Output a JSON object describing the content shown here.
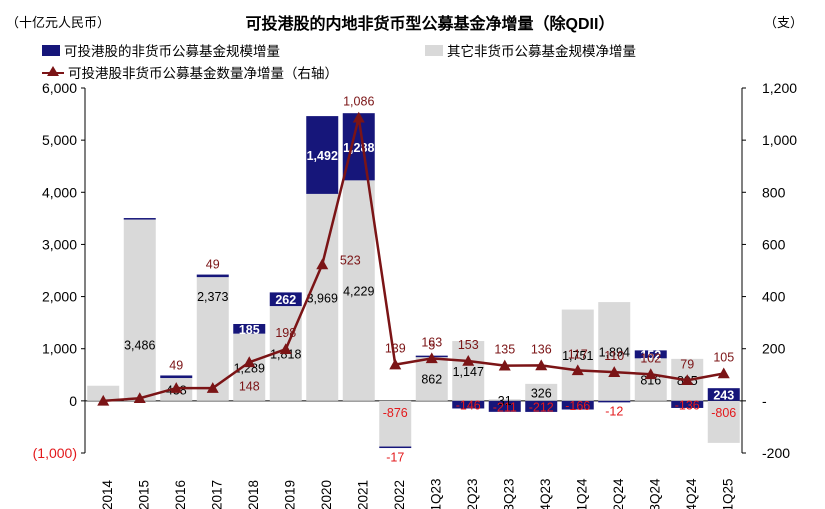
{
  "header": {
    "title": "可投港股的内地非货币型公募基金净增量（除QDII）",
    "left_unit": "（十亿元人民币）",
    "right_unit": "（支）"
  },
  "legend": {
    "series_a": "可投港股的非货币公募基金规模增量",
    "series_b": "其它非货币公募基金规模净增量",
    "series_c": "可投港股非货币公募基金数量净增量（右轴）"
  },
  "colors": {
    "series_a": "#16167a",
    "series_b": "#d9d9d9",
    "series_c": "#7b1416",
    "neg_label": "#e3191c"
  },
  "chart_data": {
    "type": "bar",
    "stacked": true,
    "categories": [
      "2014",
      "2015",
      "2016",
      "2017",
      "2018",
      "2019",
      "2020",
      "2021",
      "2022",
      "1Q23",
      "2Q23",
      "3Q23",
      "4Q23",
      "1Q24",
      "2Q24",
      "3Q24",
      "4Q24",
      "1Q25"
    ],
    "y_left": {
      "range": [
        -1000,
        6000
      ],
      "ticks": [
        -1000,
        0,
        1000,
        2000,
        3000,
        4000,
        5000,
        6000
      ],
      "tick_labels": [
        "(1,000)",
        "0",
        "1,000",
        "2,000",
        "3,000",
        "4,000",
        "5,000",
        "6,000"
      ]
    },
    "y_right": {
      "range": [
        -200,
        1200
      ],
      "ticks": [
        -200,
        0,
        200,
        400,
        600,
        800,
        1000,
        1200
      ],
      "tick_labels": [
        "-200",
        "-",
        "200",
        "400",
        "600",
        "800",
        "1,000",
        "1,200"
      ]
    },
    "series": [
      {
        "name": "其它非货币公募基金规模净增量",
        "axis": "left",
        "values": [
          290,
          3486,
          438,
          2373,
          1289,
          1818,
          3969,
          4229,
          -876,
          862,
          1147,
          31,
          326,
          1751,
          1894,
          816,
          805,
          -806
        ],
        "labels": [
          "",
          "3,486",
          "438",
          "2,373",
          "1,289",
          "1,818",
          "3,969",
          "4,229",
          "-876",
          "862",
          "1,147",
          "31",
          "326",
          "1,751",
          "1,894",
          "816",
          "805",
          "-806"
        ]
      },
      {
        "name": "可投港股的非货币公募基金规模增量",
        "axis": "left",
        "values": [
          0,
          20,
          49,
          49,
          185,
          262,
          1492,
          1288,
          -17,
          5,
          -146,
          -211,
          -212,
          -166,
          -12,
          152,
          -136,
          243
        ],
        "labels": [
          "",
          "",
          "49",
          "49",
          "185",
          "262",
          "1,492",
          "1,288",
          "-17",
          "5",
          "-146",
          "-211",
          "-212",
          "-166",
          "-12",
          "152",
          "-136",
          "243"
        ]
      },
      {
        "name": "可投港股非货币公募基金数量净增量（右轴）",
        "axis": "right",
        "type": "line",
        "values": [
          0,
          10,
          49,
          49,
          148,
          198,
          523,
          1086,
          139,
          163,
          153,
          135,
          136,
          117,
          110,
          102,
          79,
          105
        ],
        "labels": [
          "",
          "",
          "",
          "",
          "148",
          "198",
          "523",
          "1,086",
          "139",
          "163",
          "153",
          "135",
          "136",
          "117",
          "110",
          "102",
          "79",
          "105"
        ]
      }
    ],
    "xlabel": "",
    "ylabel": "",
    "grid": false
  }
}
